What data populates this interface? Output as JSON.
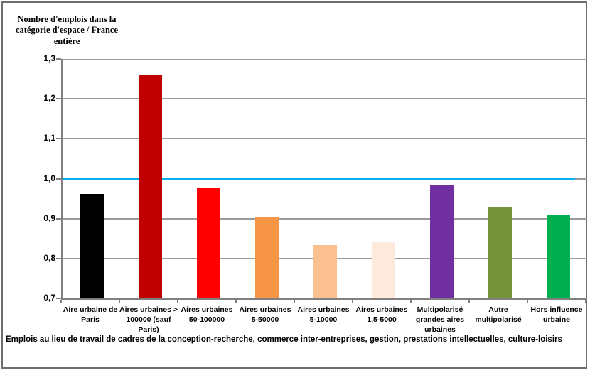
{
  "chart_data": {
    "type": "bar",
    "title": "Nombre d'emplois dans la catégorie d'espace / France entière",
    "caption": "Emplois au lieu de travail de cadres de la conception-recherche, commerce inter-entreprises, gestion, prestations intellectuelles, culture-loisirs",
    "categories": [
      "Aire urbaine de Paris",
      "Aires urbaines > 100000 (sauf Paris)",
      "Aires urbaines 50-100000",
      "Aires urbaines 5-50000",
      "Aires urbaines 5-10000",
      "Aires urbaines 1,5-5000",
      "Multipolarisé grandes aires urbaines",
      "Autre multipolarisé",
      "Hors influence urbaine"
    ],
    "values": [
      0.962,
      1.259,
      0.978,
      0.903,
      0.834,
      0.843,
      0.985,
      0.928,
      0.909
    ],
    "bar_colors": [
      "#000000",
      "#C00000",
      "#FF0000",
      "#F79646",
      "#FAC090",
      "#FDEADD",
      "#7030A0",
      "#76933C",
      "#00B050"
    ],
    "reference_line": {
      "value": 1.0,
      "color": "#00B0F0"
    },
    "ylim": [
      0.7,
      1.3
    ],
    "ytick_step": 0.1,
    "ytick_labels": [
      "0,7",
      "0,8",
      "0,9",
      "1,0",
      "1,1",
      "1,2",
      "1,3"
    ],
    "grid": true,
    "legend": "none",
    "colors": {
      "gridline": "#9b9b9b",
      "axis": "#808080",
      "frame_border": "#6e6e6e"
    }
  }
}
